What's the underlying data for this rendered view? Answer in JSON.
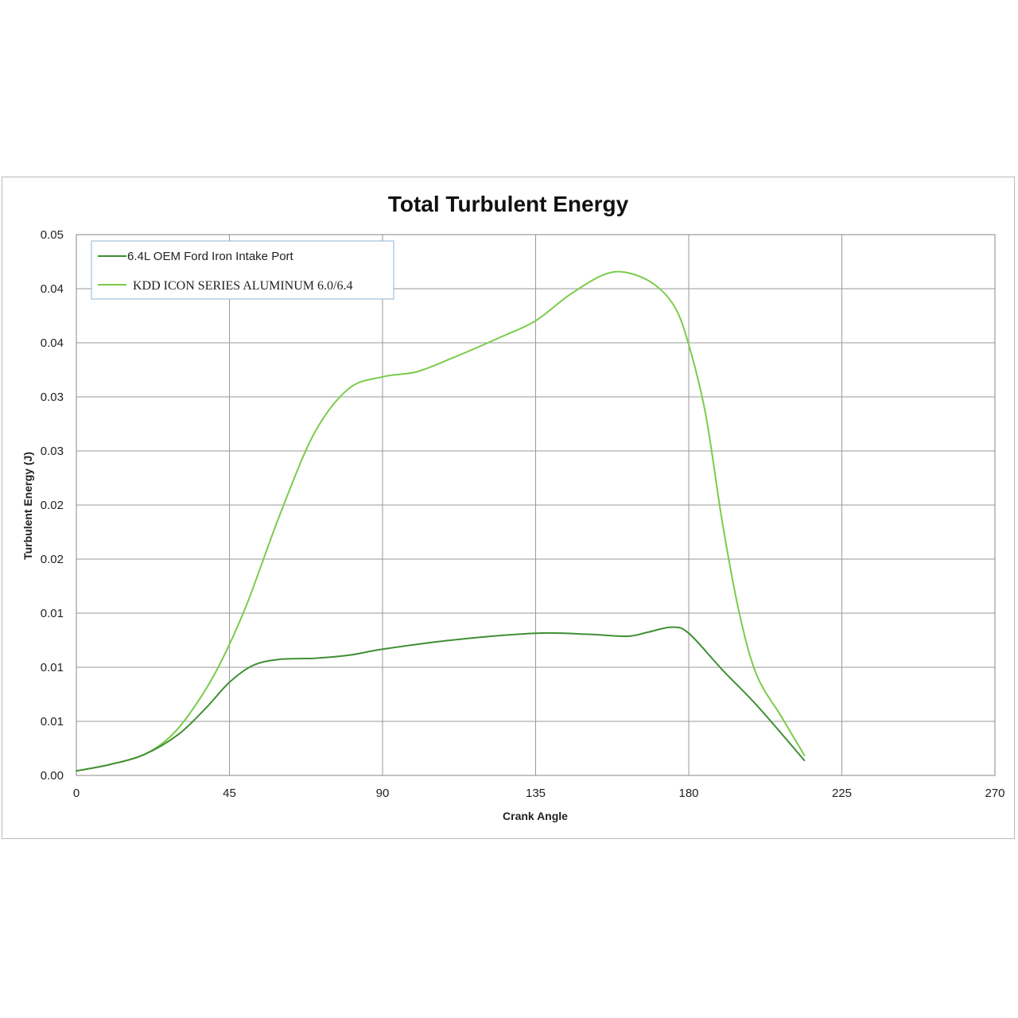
{
  "chart_data": {
    "type": "line",
    "title": "Total Turbulent Energy",
    "xlabel": "Crank Angle",
    "ylabel": "Turbulent Energy (J)",
    "xlim": [
      0,
      270
    ],
    "x_ticks": [
      "0",
      "45",
      "90",
      "135",
      "180",
      "225",
      "270"
    ],
    "y_ticks": [
      "0.00",
      "0.01",
      "0.01",
      "0.01",
      "0.02",
      "0.02",
      "0.03",
      "0.03",
      "0.04",
      "0.04",
      "0.05"
    ],
    "grid": true,
    "legend_position": "top-left",
    "series": [
      {
        "name": "6.4L OEM Ford Iron Intake Port",
        "color": "#3f8f34",
        "points": [
          [
            0,
            0.00045
          ],
          [
            10,
            0.0011
          ],
          [
            20,
            0.0021
          ],
          [
            30,
            0.0041
          ],
          [
            38,
            0.0067
          ],
          [
            45,
            0.0093
          ],
          [
            52,
            0.011
          ],
          [
            60,
            0.0116
          ],
          [
            70,
            0.0117
          ],
          [
            80,
            0.012
          ],
          [
            90,
            0.0126
          ],
          [
            110,
            0.0135
          ],
          [
            135,
            0.0142
          ],
          [
            150,
            0.0141
          ],
          [
            162,
            0.0139
          ],
          [
            168,
            0.0143
          ],
          [
            175,
            0.0148
          ],
          [
            180,
            0.0142
          ],
          [
            190,
            0.0105
          ],
          [
            200,
            0.007
          ],
          [
            214,
            0.0015
          ]
        ]
      },
      {
        "name": "KDD ICON SERIES ALUMINUM 6.0/6.4",
        "color": "#7acc4a",
        "points": [
          [
            0,
            0.00045
          ],
          [
            10,
            0.0011
          ],
          [
            20,
            0.0021
          ],
          [
            28,
            0.004
          ],
          [
            35,
            0.007
          ],
          [
            42,
            0.011
          ],
          [
            50,
            0.017
          ],
          [
            60,
            0.0262
          ],
          [
            70,
            0.0342
          ],
          [
            80,
            0.0386
          ],
          [
            90,
            0.0398
          ],
          [
            100,
            0.0403
          ],
          [
            110,
            0.0416
          ],
          [
            125,
            0.0438
          ],
          [
            135,
            0.0454
          ],
          [
            145,
            0.048
          ],
          [
            155,
            0.05
          ],
          [
            162,
            0.0502
          ],
          [
            170,
            0.049
          ],
          [
            176,
            0.0467
          ],
          [
            180,
            0.043
          ],
          [
            185,
            0.036
          ],
          [
            190,
            0.025
          ],
          [
            195,
            0.016
          ],
          [
            200,
            0.01
          ],
          [
            207,
            0.006
          ],
          [
            214,
            0.002
          ]
        ]
      }
    ]
  }
}
